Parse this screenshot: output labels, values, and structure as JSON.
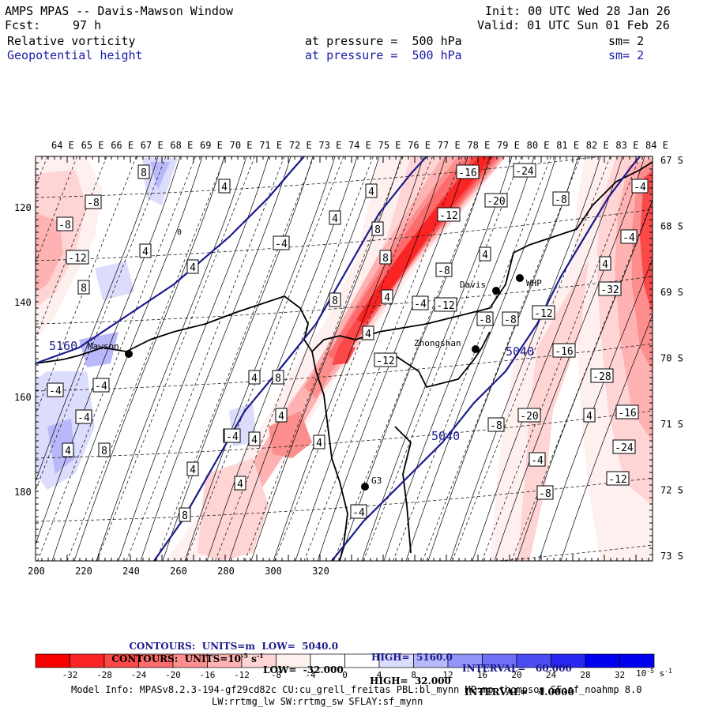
{
  "header": {
    "title": "AMPS MPAS -- Davis-Mawson Window",
    "fcst_label": "Fcst:",
    "fcst_hours": "97 h",
    "init": "Init: 00 UTC Wed 28 Jan 26",
    "valid": "Valid: 01 UTC Sun 01 Feb 26",
    "field1": "Relative vorticity",
    "field1_pressure": "at pressure =  500 hPa",
    "field1_sm": "sm= 2",
    "field2": "Geopotential height",
    "field2_pressure": "at pressure =  500 hPa",
    "field2_sm": "sm= 2"
  },
  "map": {
    "lon_labels": [
      "64 E",
      "65 E",
      "66 E",
      "67 E",
      "68 E",
      "69 E",
      "70 E",
      "71 E",
      "72 E",
      "73 E",
      "74 E",
      "75 E",
      "76 E",
      "77 E",
      "78 E",
      "79 E",
      "80 E",
      "81 E",
      "82 E",
      "83 E",
      "84 E"
    ],
    "lat_labels": [
      "67 S",
      "68 S",
      "69 S",
      "70 S",
      "71 S",
      "72 S",
      "73 S"
    ],
    "y_ticks": [
      "120",
      "140",
      "160",
      "180"
    ],
    "x_ticks": [
      "200",
      "220",
      "240",
      "260",
      "280",
      "300",
      "320"
    ],
    "stations": [
      {
        "name": "Mawson"
      },
      {
        "name": "Davis"
      },
      {
        "name": "WHP"
      },
      {
        "name": "Zhongshan"
      },
      {
        "name": "G3"
      }
    ],
    "height_labels": [
      "5160",
      "5040",
      "5040"
    ],
    "vort_labels": [
      "8",
      "-8",
      "-8",
      "-12",
      "4",
      "4",
      "8",
      "4",
      "-4",
      "4",
      "8",
      "4",
      "8",
      "8",
      "4",
      "4",
      "8",
      "4",
      "4",
      "4",
      "4",
      "8",
      "4",
      "4",
      "-4",
      "-12",
      "-8",
      "4",
      "-16",
      "-24",
      "-20",
      "-12",
      "-8",
      "-4",
      "-4",
      "4",
      "-32",
      "-12",
      "-16",
      "-28",
      "4",
      "-16",
      "-24",
      "-12",
      "-20",
      "-8",
      "-4",
      "-8",
      "-12",
      "-8",
      "-8",
      "-4",
      "-4",
      "-4",
      "4",
      "8",
      "4",
      "-4",
      "-4"
    ],
    "vort_marker": "0"
  },
  "legend": {
    "contours1_label": "CONTOURS:  UNITS=m  LOW=  5040.0",
    "contours1_high": "HIGH=  5160.0",
    "contours1_interval": "INTERVAL=   60.000",
    "contours2_label": "CONTOURS:  UNITS=10",
    "contours2_exp": "-5",
    "contours2_unit": " s",
    "contours2_unit_exp": "-1",
    "contours2_low": "LOW=  -32.000",
    "contours2_high": "HIGH=  32.000",
    "contours2_interval": "INTERVAL=   4.0000",
    "colorbar_ticks": [
      "-32",
      "-28",
      "-24",
      "-20",
      "-16",
      "-12",
      "-8",
      "-4",
      "0",
      "4",
      "8",
      "12",
      "16",
      "20",
      "24",
      "28",
      "32"
    ],
    "colorbar_colors": [
      "#f80000",
      "#fa2424",
      "#fb4848",
      "#fc6c6c",
      "#fd8e8e",
      "#feb2b2",
      "#fed4d4",
      "#fff0f0",
      "#ffffff",
      "#ffffff",
      "#dcdcfc",
      "#b8b8fa",
      "#9494f8",
      "#7070f6",
      "#4c4cf4",
      "#2828f2",
      "#0000f0"
    ],
    "colorbar_unit": "10",
    "colorbar_unit_exp": "-5",
    "colorbar_unit_s": " s",
    "colorbar_unit_s_exp": "-1"
  },
  "model_info": {
    "line1": "Model Info: MPASv8.2.3-194-gf29cd82c CU:cu_grell_freitas PBL:bl_mynn MP:mp_thompson SF:sf_noahmp 8.0",
    "line2": "LW:rrtmg_lw SW:rrtmg_sw SFLAY:sf_mynn"
  }
}
